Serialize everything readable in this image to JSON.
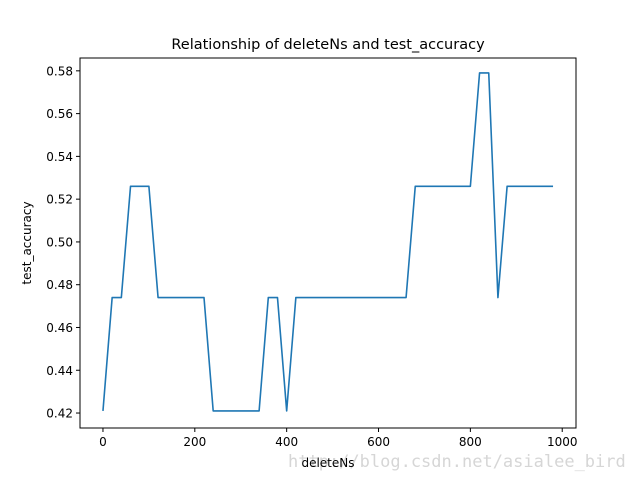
{
  "chart_data": {
    "type": "line",
    "title": "Relationship of deleteNs and test_accuracy",
    "xlabel": "deleteNs",
    "ylabel": "test_accuracy",
    "xlim": [
      -50,
      1030
    ],
    "ylim": [
      0.413,
      0.586
    ],
    "xticks": [
      0,
      200,
      400,
      600,
      800,
      1000
    ],
    "yticks": [
      0.42,
      0.44,
      0.46,
      0.48,
      0.5,
      0.52,
      0.54,
      0.56,
      0.58
    ],
    "x": [
      0,
      20,
      40,
      60,
      80,
      100,
      120,
      140,
      160,
      180,
      200,
      220,
      240,
      260,
      280,
      300,
      320,
      340,
      360,
      380,
      400,
      420,
      440,
      460,
      480,
      500,
      520,
      540,
      560,
      580,
      600,
      620,
      640,
      660,
      680,
      700,
      720,
      740,
      760,
      780,
      800,
      820,
      840,
      860,
      880,
      900,
      920,
      940,
      960,
      980
    ],
    "series": [
      {
        "color": "#1f77b4",
        "values": [
          0.421,
          0.474,
          0.474,
          0.526,
          0.526,
          0.526,
          0.474,
          0.474,
          0.474,
          0.474,
          0.474,
          0.474,
          0.421,
          0.421,
          0.421,
          0.421,
          0.421,
          0.421,
          0.474,
          0.474,
          0.421,
          0.474,
          0.474,
          0.474,
          0.474,
          0.474,
          0.474,
          0.474,
          0.474,
          0.474,
          0.474,
          0.474,
          0.474,
          0.474,
          0.526,
          0.526,
          0.526,
          0.526,
          0.526,
          0.526,
          0.526,
          0.579,
          0.579,
          0.474,
          0.526,
          0.526,
          0.526,
          0.526,
          0.526,
          0.526
        ]
      }
    ],
    "grid": false,
    "watermark": "http://blog.csdn.net/asialee_bird"
  }
}
